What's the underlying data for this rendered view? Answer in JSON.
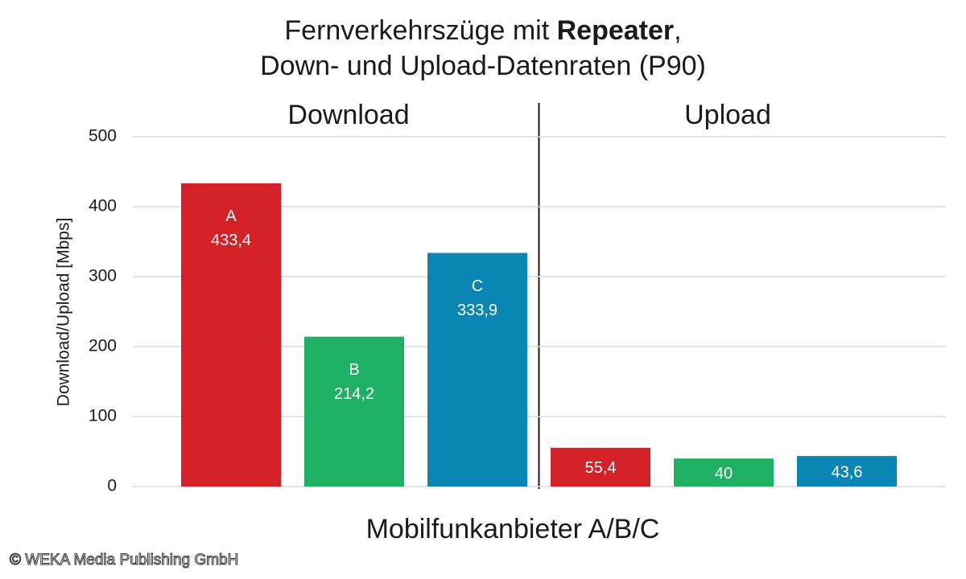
{
  "chart_data": {
    "type": "bar",
    "title": [
      "Fernverkehrszüge mit Repeater,",
      "Down- und Upload-Datenraten (P90)"
    ],
    "title_bold": "Repeater",
    "y_label": "Download/Upload [Mbps]",
    "x_label": "Mobilfunkanbieter A/B/C",
    "categories": [
      "Download",
      "Upload"
    ],
    "series": [
      {
        "name": "A",
        "color": "#d42127",
        "values": [
          433.4,
          55.4
        ],
        "value_labels": [
          "433,4",
          "55,4"
        ]
      },
      {
        "name": "B",
        "color": "#1fb163",
        "values": [
          214.2,
          40
        ],
        "value_labels": [
          "214,2",
          "40"
        ]
      },
      {
        "name": "C",
        "color": "#0b86b4",
        "values": [
          333.9,
          43.6
        ],
        "value_labels": [
          "333,9",
          "43,6"
        ]
      }
    ],
    "ylim": [
      0,
      500
    ],
    "yticks": [
      0,
      100,
      200,
      300,
      400,
      500
    ],
    "grid": true,
    "footer": "© WEKA Media Publishing GmbH"
  }
}
